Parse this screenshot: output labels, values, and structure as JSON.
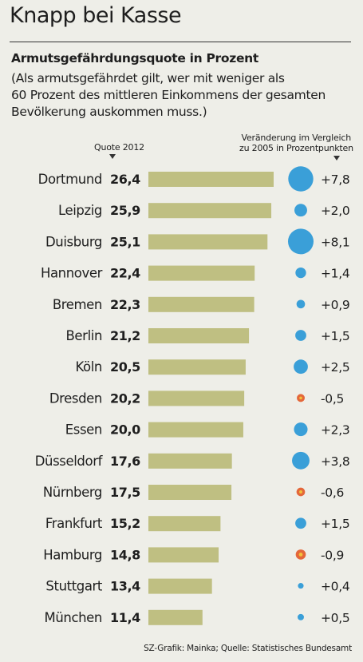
{
  "title": "Knapp bei Kasse",
  "subtitle": "Armutsgefährdungsquote in Prozent",
  "note_lines": [
    "(Als armutsgefährdet gilt, wer mit weniger als",
    "60 Prozent des mittleren Einkommens der gesamten",
    "Bevölkerung auskommen muss.)"
  ],
  "header_quote": "Quote 2012",
  "header_change_lines": [
    "Veränderung im Vergleich",
    "zu 2005 in Prozentpunkten"
  ],
  "source": "SZ-Grafik: Mainka; Quelle: Statistisches Bundesamt",
  "colors": {
    "bar": "#bfbf82",
    "positive_dot": "#3a9fd8",
    "negative_dot": "#e4673a",
    "negative_dot_center": "#f2c23a",
    "text": "#1e1e1e",
    "background": "#eeeee8"
  },
  "chart_data": {
    "type": "bar",
    "orientation": "horizontal",
    "categories": [
      "Dortmund",
      "Leipzig",
      "Duisburg",
      "Hannover",
      "Bremen",
      "Berlin",
      "Köln",
      "Dresden",
      "Essen",
      "Düsseldorf",
      "Nürnberg",
      "Frankfurt",
      "Hamburg",
      "Stuttgart",
      "München"
    ],
    "values": [
      26.4,
      25.9,
      25.1,
      22.4,
      22.3,
      21.2,
      20.5,
      20.2,
      20.0,
      17.6,
      17.5,
      15.2,
      14.8,
      13.4,
      11.4
    ],
    "value_labels": [
      "26,4",
      "25,9",
      "25,1",
      "22,4",
      "22,3",
      "21,2",
      "20,5",
      "20,2",
      "20,0",
      "17,6",
      "17,5",
      "15,2",
      "14,8",
      "13,4",
      "11,4"
    ],
    "change_values": [
      7.8,
      2.0,
      8.1,
      1.4,
      0.9,
      1.5,
      2.5,
      -0.5,
      2.3,
      3.8,
      -0.6,
      1.5,
      -0.9,
      0.4,
      0.5
    ],
    "change_labels": [
      "+7,8",
      "+2,0",
      "+8,1",
      "+1,4",
      "+0,9",
      "+1,5",
      "+2,5",
      "-0,5",
      "+2,3",
      "+3,8",
      "-0,6",
      "+1,5",
      "-0,9",
      "+0,4",
      "+0,5"
    ],
    "legend": "none",
    "grid": false
  }
}
